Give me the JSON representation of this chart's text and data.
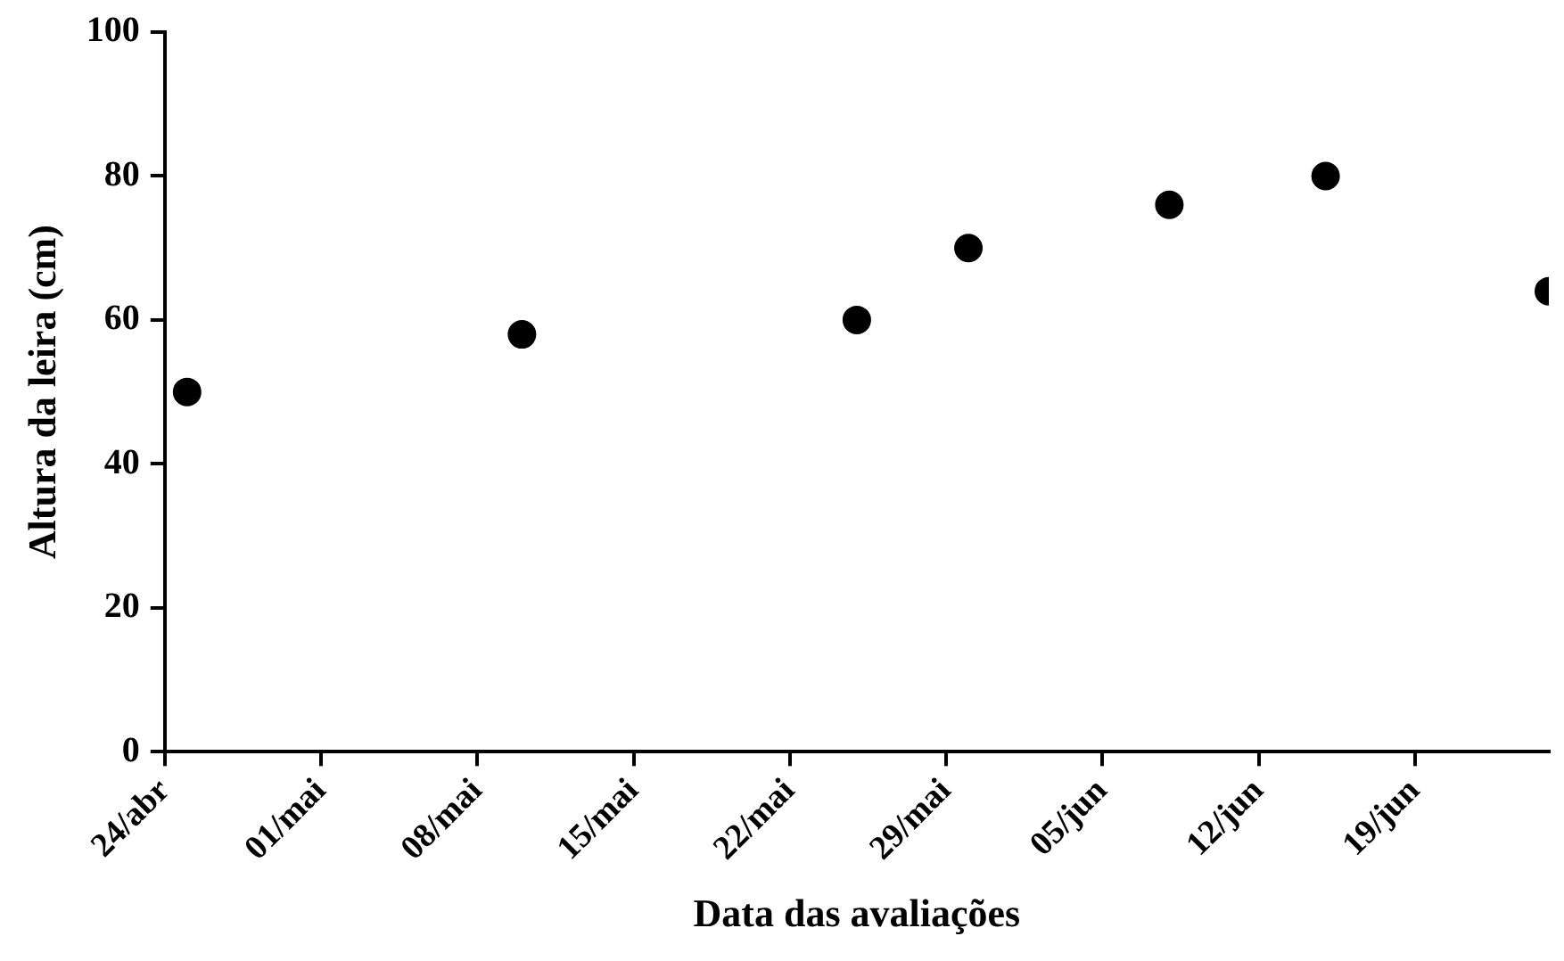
{
  "chart_data": {
    "type": "scatter",
    "xlabel": "Data das avaliações",
    "ylabel": "Altura da leira (cm)",
    "x": [
      "--04-25",
      "--05-10",
      "--05-25",
      "--05-30",
      "--06-08",
      "--06-15",
      "--06-25"
    ],
    "values": [
      50,
      58,
      60,
      70,
      76,
      80,
      64
    ],
    "color": "#000000",
    "marker": "circle",
    "xlim": [
      "--04-24",
      "--06-25"
    ],
    "xticks": [
      {
        "value": "--04-24",
        "label": "24/abr"
      },
      {
        "value": "--05-01",
        "label": "01/mai"
      },
      {
        "value": "--05-08",
        "label": "08/mai"
      },
      {
        "value": "--05-15",
        "label": "15/mai"
      },
      {
        "value": "--05-22",
        "label": "22/mai"
      },
      {
        "value": "--05-29",
        "label": "29/mai"
      },
      {
        "value": "--06-05",
        "label": "05/jun"
      },
      {
        "value": "--06-12",
        "label": "12/jun"
      },
      {
        "value": "--06-19",
        "label": "19/jun"
      }
    ],
    "ylim": [
      0,
      100
    ],
    "yticks": [
      0,
      20,
      40,
      60,
      80,
      100
    ],
    "grid": false,
    "legend": false
  }
}
